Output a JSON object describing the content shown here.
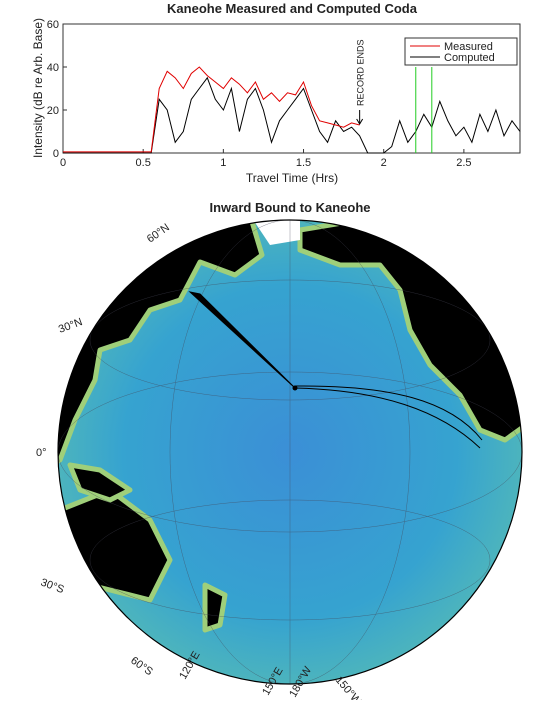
{
  "chart_data": {
    "type": "line",
    "title": "Kaneohe Measured and Computed Coda",
    "x_label": "Travel Time (Hrs)",
    "y_label": "Intensity (dB re Arb. Base)",
    "xlim": [
      0,
      2.85
    ],
    "xticks": [
      0,
      0.5,
      1,
      1.5,
      2,
      2.5
    ],
    "ylim": [
      0,
      60
    ],
    "yticks": [
      0,
      20,
      40,
      60
    ],
    "legend": "upper right",
    "x": [
      0,
      0.05,
      0.1,
      0.15,
      0.2,
      0.25,
      0.3,
      0.35,
      0.4,
      0.45,
      0.5,
      0.55,
      0.6,
      0.65,
      0.7,
      0.75,
      0.8,
      0.85,
      0.9,
      0.95,
      1.0,
      1.05,
      1.1,
      1.15,
      1.2,
      1.25,
      1.3,
      1.35,
      1.4,
      1.45,
      1.5,
      1.55,
      1.6,
      1.65,
      1.7,
      1.75,
      1.8,
      1.85,
      1.9,
      1.95,
      2.0,
      2.05,
      2.1,
      2.15,
      2.2,
      2.25,
      2.3,
      2.35,
      2.4,
      2.45,
      2.5,
      2.55,
      2.6,
      2.65,
      2.7,
      2.75,
      2.8,
      2.85
    ],
    "series": [
      {
        "name": "Measured",
        "color": "#e00000",
        "values": [
          0.5,
          0.5,
          0.5,
          0.5,
          0.5,
          0.5,
          0.5,
          0.5,
          0.5,
          0.5,
          0.5,
          0.5,
          30,
          38,
          35,
          30,
          37,
          40,
          36,
          33,
          30,
          35,
          32,
          28,
          33,
          25,
          28,
          24,
          28,
          27,
          33,
          22,
          15,
          14,
          13,
          12,
          14,
          13,
          null,
          null,
          null,
          null,
          null,
          null,
          null,
          null,
          null,
          null,
          null,
          null,
          null,
          null,
          null,
          null,
          null,
          null,
          null,
          null
        ]
      },
      {
        "name": "Computed",
        "color": "#000000",
        "values": [
          0,
          0,
          0,
          0,
          0,
          0,
          0,
          0,
          0,
          0,
          0,
          0,
          25,
          20,
          5,
          10,
          25,
          30,
          35,
          25,
          20,
          30,
          10,
          25,
          30,
          20,
          5,
          15,
          20,
          25,
          30,
          20,
          10,
          5,
          15,
          10,
          12,
          8,
          0,
          0,
          0,
          3,
          15,
          5,
          10,
          18,
          12,
          24,
          15,
          8,
          12,
          5,
          18,
          10,
          20,
          8,
          15,
          10
        ]
      }
    ],
    "annotation": {
      "text": "RECORD ENDS",
      "x": 1.85
    },
    "markers": {
      "x": [
        2.2,
        2.3
      ],
      "top": 40,
      "color": "#22cc22"
    }
  },
  "map": {
    "title": "Inward Bound to Kaneohe",
    "lat_labels": [
      "60°N",
      "30°N",
      "0°",
      "30°S",
      "60°S"
    ],
    "lon_labels": [
      "120°E",
      "150°E",
      "180°W",
      "150°W"
    ]
  }
}
